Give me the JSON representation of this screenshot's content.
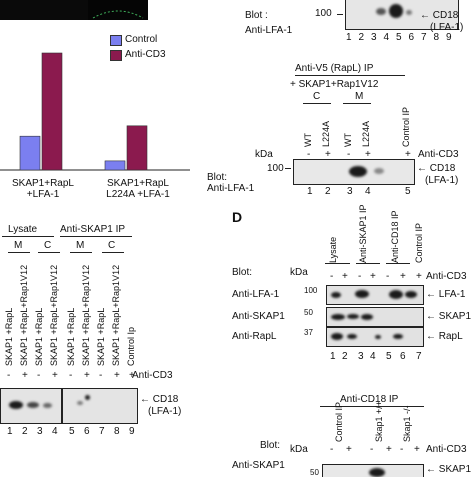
{
  "panel_top_left": {
    "legend": [
      "Control",
      "Anti-CD3"
    ],
    "colors": {
      "control": "#7b7ff0",
      "anti": "#8b1a4e"
    },
    "groups": [
      "SKAP1+RapL\n+LFA-1",
      "SKAP1+RapL\nL224A +LFA-1"
    ]
  },
  "chart_data": {
    "type": "bar",
    "categories": [
      "SKAP1+RapL +LFA-1",
      "SKAP1+RapL L224A +LFA-1"
    ],
    "series": [
      {
        "name": "Control",
        "values": [
          0.13,
          0.035
        ]
      },
      {
        "name": "Anti-CD3",
        "values": [
          0.45,
          0.17
        ]
      }
    ],
    "ylim": [
      0,
      0.5
    ]
  },
  "panel_top_right": {
    "marker": "100",
    "blot_label": "Blot :",
    "antibody": "Anti-LFA-1",
    "arrow_label": "CD18",
    "arrow_label2": "(LFA-1)",
    "lanes": [
      "1",
      "2",
      "3",
      "4",
      "5",
      "6",
      "7",
      "8",
      "9"
    ]
  },
  "panel_c": {
    "ip_title": "Anti-V5 (RapL) IP",
    "plus": "+ SKAP1+Rap1V12",
    "groups": [
      "C",
      "M"
    ],
    "columns": [
      "WT",
      "L224A",
      "WT",
      "L224A",
      "Control IP"
    ],
    "cd3_signs": [
      "-",
      "+",
      "-",
      "+",
      "+"
    ],
    "cd3_label": "Anti-CD3",
    "kda": "kDa",
    "marker": "100",
    "blot": "Blot:",
    "antibody": "Anti-LFA-1",
    "arrow_label": "CD18",
    "arrow_label2": "(LFA-1)",
    "lanes": [
      "1",
      "2",
      "3",
      "4",
      "5"
    ]
  },
  "panel_bottom_left": {
    "lysate": "Lysate",
    "ip": "Anti-SKAP1 IP",
    "groups": [
      "M",
      "C",
      "M",
      "C"
    ],
    "columns": [
      "SKAP1 +RapL",
      "SKAP1 +RapL+Rap1V12",
      "SKAP1 +RapL",
      "SKAP1 +RapL+Rap1V12",
      "SKAP1 +RapL",
      "SKAP1 +RapL+Rap1V12",
      "SKAP1 +RapL",
      "SKAP1 +RapL+Rap1V12",
      "Control Ip"
    ],
    "cd3_signs": [
      "-",
      "+",
      "-",
      "+",
      "-",
      "+",
      "-",
      "+",
      "+"
    ],
    "cd3_label": "Anti-CD3",
    "arrow_label": "CD18",
    "arrow_label2": "(LFA-1)",
    "lanes": [
      "1",
      "2",
      "3",
      "4",
      "5",
      "6",
      "7",
      "8",
      "9"
    ]
  },
  "panel_d": {
    "letter": "D",
    "columns": [
      "Lysate",
      "Anti-SKAP1 IP",
      "Anti-CD18 IP",
      "Control IP"
    ],
    "blot": "Blot:",
    "kda": "kDa",
    "cd3_signs": [
      "-",
      "+",
      "-",
      "+",
      "-",
      "+",
      "+"
    ],
    "cd3_label": "Anti-CD3",
    "rows": [
      {
        "antibody": "Anti-LFA-1",
        "marker": "100",
        "target": "LFA-1"
      },
      {
        "antibody": "Anti-SKAP1",
        "marker": "50",
        "target": "SKAP1"
      },
      {
        "antibody": "Anti-RapL",
        "marker": "37",
        "target": "RapL"
      }
    ],
    "lanes": [
      "1",
      "2",
      "3",
      "4",
      "5",
      "6",
      "7"
    ]
  },
  "panel_e": {
    "ip_title": "Anti-CD18 IP",
    "columns": [
      "Control IP",
      "Skap1 +/+",
      "Skap1 -/-"
    ],
    "blot": "Blot:",
    "kda": "kDa",
    "cd3_signs": [
      "-",
      "+",
      "-",
      "+",
      "-",
      "+"
    ],
    "cd3_label": "Anti-CD3",
    "antibody": "Anti-SKAP1",
    "marker": "50",
    "target": "SKAP1"
  }
}
